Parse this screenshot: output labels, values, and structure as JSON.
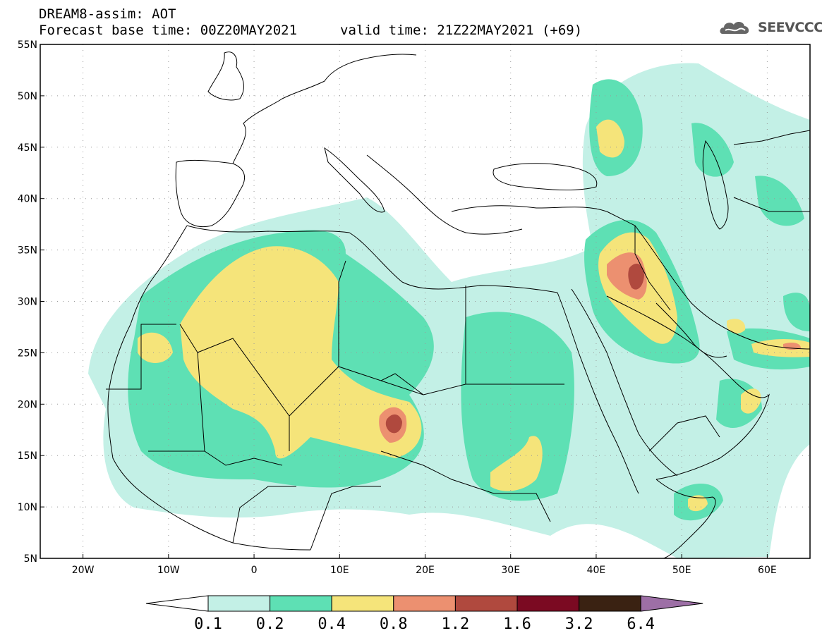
{
  "header": {
    "line1": "DREAM8-assim: AOT",
    "line2": "Forecast base time: 00Z20MAY2021",
    "valid": "valid time: 21Z22MAY2021 (+69)",
    "logo_text": "SEEVCCC"
  },
  "map": {
    "lon_range": [
      -25,
      65
    ],
    "lat_range": [
      5,
      55
    ],
    "lat_ticks": [
      {
        "value": 55,
        "label": "55N"
      },
      {
        "value": 50,
        "label": "50N"
      },
      {
        "value": 45,
        "label": "45N"
      },
      {
        "value": 40,
        "label": "40N"
      },
      {
        "value": 35,
        "label": "35N"
      },
      {
        "value": 30,
        "label": "30N"
      },
      {
        "value": 25,
        "label": "25N"
      },
      {
        "value": 20,
        "label": "20N"
      },
      {
        "value": 15,
        "label": "15N"
      },
      {
        "value": 10,
        "label": "10N"
      },
      {
        "value": 5,
        "label": "5N"
      }
    ],
    "lon_ticks": [
      {
        "value": -20,
        "label": "20W"
      },
      {
        "value": -10,
        "label": "10W"
      },
      {
        "value": 0,
        "label": "0"
      },
      {
        "value": 10,
        "label": "10E"
      },
      {
        "value": 20,
        "label": "20E"
      },
      {
        "value": 30,
        "label": "30E"
      },
      {
        "value": 40,
        "label": "40E"
      },
      {
        "value": 50,
        "label": "50E"
      },
      {
        "value": 60,
        "label": "60E"
      }
    ]
  },
  "colorbar": {
    "labels": [
      "0.1",
      "0.2",
      "0.4",
      "0.8",
      "1.2",
      "1.6",
      "3.2",
      "6.4"
    ],
    "colors": [
      "#ffffff",
      "#c3f0e6",
      "#5ee0b4",
      "#f5e47a",
      "#ec9070",
      "#b0493e",
      "#7b0a22",
      "#3a2212",
      "#9d6fa6"
    ]
  },
  "palette": {
    "lev1": "#c3f0e6",
    "lev2": "#5ee0b4",
    "lev3": "#f5e47a",
    "lev4": "#ec9070",
    "lev5": "#b0493e",
    "coast": "#000000",
    "grid": "#9a9a9a"
  }
}
